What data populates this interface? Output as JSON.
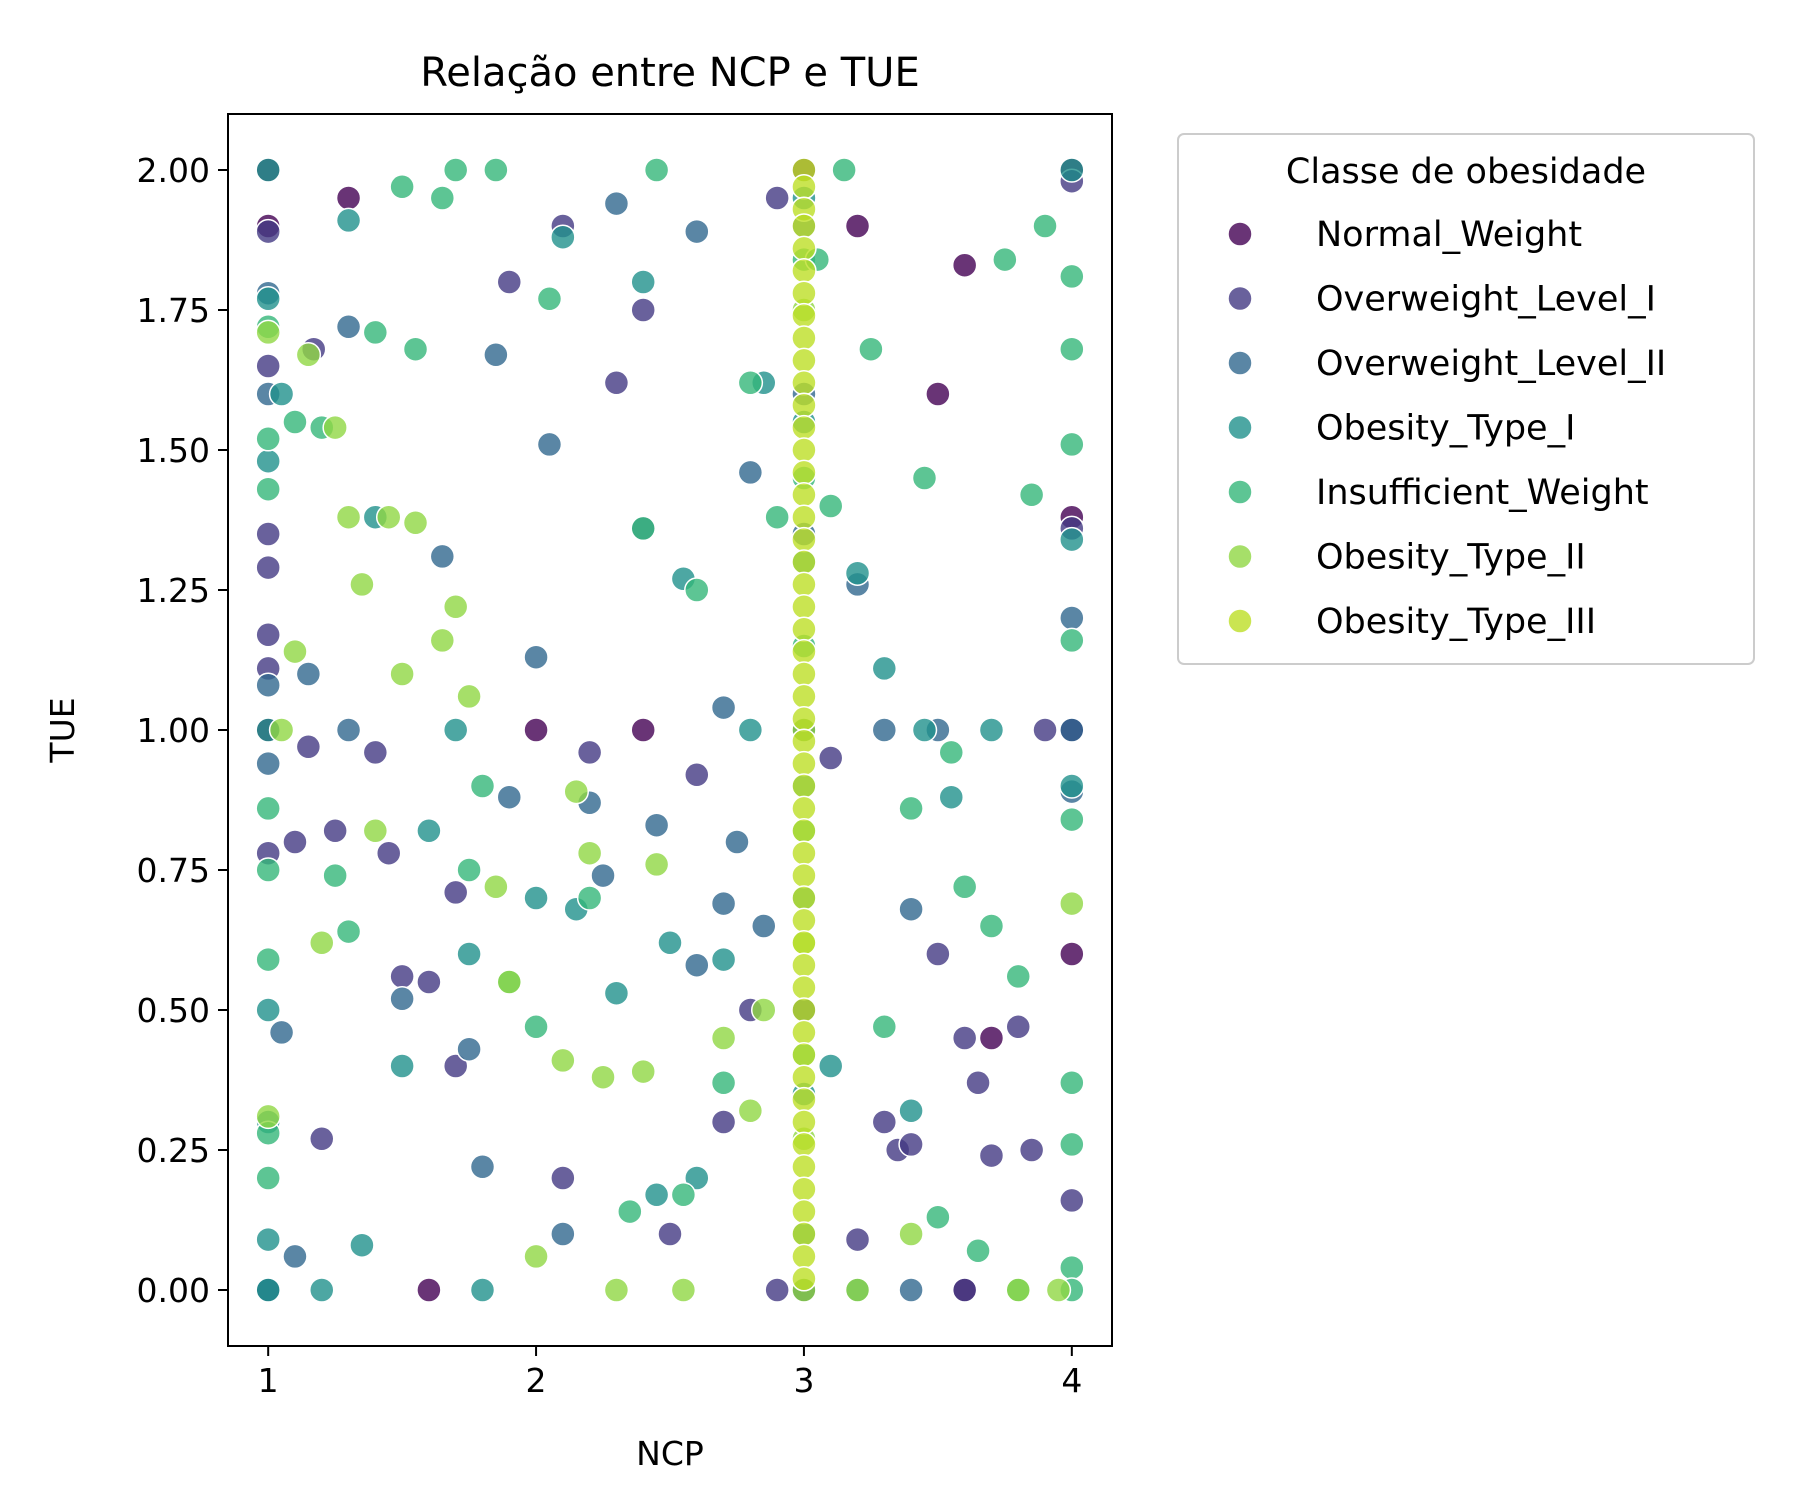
{
  "chart_data": {
    "type": "scatter",
    "title": "Relação entre NCP e TUE",
    "xlabel": "NCP",
    "ylabel": "TUE",
    "xlim": [
      0.85,
      4.15
    ],
    "ylim": [
      -0.1,
      2.1
    ],
    "xticks": [
      1,
      2,
      3,
      4
    ],
    "xtick_labels": [
      "1",
      "2",
      "3",
      "4"
    ],
    "yticks": [
      0.0,
      0.25,
      0.5,
      0.75,
      1.0,
      1.25,
      1.5,
      1.75,
      2.0
    ],
    "ytick_labels": [
      "0.00",
      "0.25",
      "0.50",
      "0.75",
      "1.00",
      "1.25",
      "1.50",
      "1.75",
      "2.00"
    ],
    "grid": false,
    "legend": {
      "title": "Classe de obesidade",
      "placement": "outside-right-top"
    },
    "marker_alpha": 0.8,
    "series": [
      {
        "name": "Normal_Weight",
        "color": "#440154",
        "points": [
          [
            1,
            2.0
          ],
          [
            1,
            1.9
          ],
          [
            1,
            1.0
          ],
          [
            1,
            0.0
          ],
          [
            1.3,
            1.95
          ],
          [
            1.6,
            0.0
          ],
          [
            2.0,
            1.0
          ],
          [
            2.4,
            1.0
          ],
          [
            3,
            2.0
          ],
          [
            3,
            1.0
          ],
          [
            3,
            0.5
          ],
          [
            3,
            0.0
          ],
          [
            3.2,
            1.9
          ],
          [
            3.5,
            1.6
          ],
          [
            3.6,
            1.83
          ],
          [
            4,
            2.0
          ],
          [
            4,
            1.38
          ],
          [
            4,
            1.0
          ],
          [
            4,
            0.6
          ],
          [
            3.7,
            0.45
          ],
          [
            3.6,
            0.0
          ]
        ]
      },
      {
        "name": "Overweight_Level_I",
        "color": "#443983",
        "points": [
          [
            1,
            1.89
          ],
          [
            1,
            1.65
          ],
          [
            1,
            1.35
          ],
          [
            1,
            1.29
          ],
          [
            1,
            1.17
          ],
          [
            1,
            1.11
          ],
          [
            1,
            0.78
          ],
          [
            1,
            0.0
          ],
          [
            1.1,
            0.8
          ],
          [
            1.15,
            0.97
          ],
          [
            1.17,
            1.68
          ],
          [
            1.2,
            0.27
          ],
          [
            1.25,
            0.82
          ],
          [
            1.4,
            0.96
          ],
          [
            1.45,
            0.78
          ],
          [
            1.5,
            0.56
          ],
          [
            1.6,
            0.55
          ],
          [
            1.7,
            0.71
          ],
          [
            1.7,
            0.4
          ],
          [
            1.9,
            1.8
          ],
          [
            2.1,
            1.9
          ],
          [
            2.1,
            0.2
          ],
          [
            2.2,
            0.96
          ],
          [
            2.3,
            1.62
          ],
          [
            2.4,
            1.75
          ],
          [
            2.5,
            0.1
          ],
          [
            2.6,
            0.92
          ],
          [
            2.7,
            0.3
          ],
          [
            2.8,
            0.5
          ],
          [
            2.9,
            1.95
          ],
          [
            2.9,
            0.0
          ],
          [
            3.1,
            0.95
          ],
          [
            3.2,
            0.09
          ],
          [
            3.3,
            0.3
          ],
          [
            3.35,
            0.25
          ],
          [
            3.4,
            0.26
          ],
          [
            3.5,
            0.6
          ],
          [
            3.6,
            0.45
          ],
          [
            3.65,
            0.37
          ],
          [
            3.7,
            0.24
          ],
          [
            3.8,
            0.47
          ],
          [
            3.85,
            0.25
          ],
          [
            4,
            1.98
          ],
          [
            4,
            1.36
          ],
          [
            4,
            0.16
          ],
          [
            4,
            1.0
          ],
          [
            3.9,
            1.0
          ],
          [
            3.6,
            0.0
          ]
        ]
      },
      {
        "name": "Overweight_Level_II",
        "color": "#31688e",
        "points": [
          [
            1,
            1.78
          ],
          [
            1,
            1.6
          ],
          [
            1,
            1.08
          ],
          [
            1,
            0.94
          ],
          [
            1,
            0.0
          ],
          [
            1.05,
            0.46
          ],
          [
            1.1,
            0.06
          ],
          [
            1.15,
            1.1
          ],
          [
            1.3,
            1.72
          ],
          [
            1.3,
            1.0
          ],
          [
            1.5,
            0.52
          ],
          [
            1.65,
            1.31
          ],
          [
            1.75,
            0.43
          ],
          [
            1.8,
            0.22
          ],
          [
            1.85,
            1.67
          ],
          [
            1.9,
            0.88
          ],
          [
            2.0,
            1.13
          ],
          [
            2.05,
            1.51
          ],
          [
            2.1,
            0.1
          ],
          [
            2.2,
            0.87
          ],
          [
            2.25,
            0.74
          ],
          [
            2.3,
            1.94
          ],
          [
            2.4,
            1.36
          ],
          [
            2.45,
            0.83
          ],
          [
            2.6,
            0.58
          ],
          [
            2.6,
            1.89
          ],
          [
            2.7,
            1.04
          ],
          [
            2.7,
            0.69
          ],
          [
            2.75,
            0.8
          ],
          [
            2.8,
            1.46
          ],
          [
            2.85,
            0.65
          ],
          [
            3,
            1.9
          ],
          [
            3,
            1.6
          ],
          [
            3,
            1.35
          ],
          [
            3,
            1.0
          ],
          [
            3,
            0.5
          ],
          [
            3,
            0.0
          ],
          [
            3.2,
            1.26
          ],
          [
            3.3,
            1.0
          ],
          [
            3.4,
            0.68
          ],
          [
            3.5,
            1.0
          ],
          [
            4,
            1.2
          ],
          [
            4,
            0.89
          ],
          [
            4,
            1.0
          ],
          [
            3.4,
            0.0
          ]
        ]
      },
      {
        "name": "Obesity_Type_I",
        "color": "#21918c",
        "points": [
          [
            1,
            2.0
          ],
          [
            1,
            1.77
          ],
          [
            1,
            1.48
          ],
          [
            1,
            1.0
          ],
          [
            1,
            0.5
          ],
          [
            1,
            0.3
          ],
          [
            1,
            0.09
          ],
          [
            1,
            0.0
          ],
          [
            1.05,
            1.6
          ],
          [
            1.2,
            0.0
          ],
          [
            1.3,
            1.91
          ],
          [
            1.35,
            0.08
          ],
          [
            1.4,
            1.38
          ],
          [
            1.5,
            0.4
          ],
          [
            1.6,
            0.82
          ],
          [
            1.7,
            1.0
          ],
          [
            1.75,
            0.6
          ],
          [
            1.8,
            0.0
          ],
          [
            2.0,
            0.7
          ],
          [
            2.1,
            1.88
          ],
          [
            2.15,
            0.68
          ],
          [
            2.3,
            0.53
          ],
          [
            2.4,
            1.8
          ],
          [
            2.45,
            0.17
          ],
          [
            2.5,
            0.62
          ],
          [
            2.55,
            1.27
          ],
          [
            2.6,
            0.2
          ],
          [
            2.7,
            0.59
          ],
          [
            2.8,
            1.0
          ],
          [
            2.85,
            1.62
          ],
          [
            3,
            1.95
          ],
          [
            3,
            1.55
          ],
          [
            3,
            1.3
          ],
          [
            3,
            0.9
          ],
          [
            3,
            0.7
          ],
          [
            3,
            0.35
          ],
          [
            3,
            0.1
          ],
          [
            3.1,
            0.4
          ],
          [
            3.2,
            1.28
          ],
          [
            3.3,
            1.11
          ],
          [
            3.4,
            0.32
          ],
          [
            3.45,
            1.0
          ],
          [
            3.55,
            0.88
          ],
          [
            4,
            2.0
          ],
          [
            4,
            1.34
          ],
          [
            4,
            0.9
          ],
          [
            3.7,
            1.0
          ],
          [
            3.2,
            0.0
          ]
        ]
      },
      {
        "name": "Insufficient_Weight",
        "color": "#35b779",
        "points": [
          [
            1,
            1.72
          ],
          [
            1,
            1.52
          ],
          [
            1,
            1.43
          ],
          [
            1,
            0.86
          ],
          [
            1,
            0.75
          ],
          [
            1,
            0.59
          ],
          [
            1,
            0.28
          ],
          [
            1,
            0.2
          ],
          [
            1.1,
            1.55
          ],
          [
            1.2,
            1.54
          ],
          [
            1.25,
            0.74
          ],
          [
            1.3,
            0.64
          ],
          [
            1.4,
            1.71
          ],
          [
            1.5,
            1.97
          ],
          [
            1.55,
            1.68
          ],
          [
            1.65,
            1.95
          ],
          [
            1.7,
            2.0
          ],
          [
            1.75,
            0.75
          ],
          [
            1.8,
            0.9
          ],
          [
            1.85,
            2.0
          ],
          [
            1.9,
            0.55
          ],
          [
            2.0,
            0.47
          ],
          [
            2.05,
            1.77
          ],
          [
            2.2,
            0.7
          ],
          [
            2.35,
            0.14
          ],
          [
            2.4,
            1.36
          ],
          [
            2.45,
            2.0
          ],
          [
            2.55,
            0.17
          ],
          [
            2.6,
            1.25
          ],
          [
            2.7,
            0.37
          ],
          [
            2.8,
            1.62
          ],
          [
            2.9,
            1.38
          ],
          [
            3,
            1.84
          ],
          [
            3,
            1.45
          ],
          [
            3,
            1.15
          ],
          [
            3,
            0.82
          ],
          [
            3,
            0.42
          ],
          [
            3.05,
            1.84
          ],
          [
            3.1,
            1.4
          ],
          [
            3.15,
            2.0
          ],
          [
            3.25,
            1.68
          ],
          [
            3.3,
            0.47
          ],
          [
            3.4,
            0.86
          ],
          [
            3.45,
            1.45
          ],
          [
            3.5,
            0.13
          ],
          [
            3.55,
            0.96
          ],
          [
            3.6,
            0.72
          ],
          [
            3.65,
            0.07
          ],
          [
            3.7,
            0.65
          ],
          [
            3.75,
            1.84
          ],
          [
            3.8,
            0.56
          ],
          [
            3.85,
            1.42
          ],
          [
            3.9,
            1.9
          ],
          [
            4,
            1.81
          ],
          [
            4,
            1.68
          ],
          [
            4,
            1.51
          ],
          [
            4,
            1.16
          ],
          [
            4,
            0.84
          ],
          [
            4,
            0.37
          ],
          [
            4,
            0.26
          ],
          [
            4,
            0.04
          ],
          [
            4,
            0.0
          ],
          [
            3.8,
            0.0
          ]
        ]
      },
      {
        "name": "Obesity_Type_II",
        "color": "#90d743",
        "points": [
          [
            1,
            1.71
          ],
          [
            1,
            0.31
          ],
          [
            1.05,
            1.0
          ],
          [
            1.1,
            1.14
          ],
          [
            1.15,
            1.67
          ],
          [
            1.2,
            0.62
          ],
          [
            1.25,
            1.54
          ],
          [
            1.3,
            1.38
          ],
          [
            1.35,
            1.26
          ],
          [
            1.4,
            0.82
          ],
          [
            1.45,
            1.38
          ],
          [
            1.5,
            1.1
          ],
          [
            1.55,
            1.37
          ],
          [
            1.65,
            1.16
          ],
          [
            1.7,
            1.22
          ],
          [
            1.75,
            1.06
          ],
          [
            1.85,
            0.72
          ],
          [
            1.9,
            0.55
          ],
          [
            2.0,
            0.06
          ],
          [
            2.1,
            0.41
          ],
          [
            2.15,
            0.89
          ],
          [
            2.2,
            0.78
          ],
          [
            2.25,
            0.38
          ],
          [
            2.3,
            0.0
          ],
          [
            2.4,
            0.39
          ],
          [
            2.45,
            0.76
          ],
          [
            2.55,
            0.0
          ],
          [
            2.7,
            0.45
          ],
          [
            2.8,
            0.32
          ],
          [
            2.85,
            0.5
          ],
          [
            3,
            1.75
          ],
          [
            3,
            1.0
          ],
          [
            3,
            0.62
          ],
          [
            3,
            0.27
          ],
          [
            3,
            0.0
          ],
          [
            3.2,
            0.0
          ],
          [
            3.4,
            0.1
          ],
          [
            3.8,
            0.0
          ],
          [
            3.95,
            0.0
          ],
          [
            4,
            0.69
          ]
        ]
      },
      {
        "name": "Obesity_Type_III",
        "color": "#bddf26",
        "points": [
          [
            3,
            2.0
          ],
          [
            3,
            1.97
          ],
          [
            3,
            1.93
          ],
          [
            3,
            1.9
          ],
          [
            3,
            1.86
          ],
          [
            3,
            1.82
          ],
          [
            3,
            1.78
          ],
          [
            3,
            1.74
          ],
          [
            3,
            1.7
          ],
          [
            3,
            1.66
          ],
          [
            3,
            1.62
          ],
          [
            3,
            1.58
          ],
          [
            3,
            1.54
          ],
          [
            3,
            1.5
          ],
          [
            3,
            1.46
          ],
          [
            3,
            1.42
          ],
          [
            3,
            1.38
          ],
          [
            3,
            1.34
          ],
          [
            3,
            1.3
          ],
          [
            3,
            1.26
          ],
          [
            3,
            1.22
          ],
          [
            3,
            1.18
          ],
          [
            3,
            1.14
          ],
          [
            3,
            1.1
          ],
          [
            3,
            1.06
          ],
          [
            3,
            1.02
          ],
          [
            3,
            0.98
          ],
          [
            3,
            0.94
          ],
          [
            3,
            0.9
          ],
          [
            3,
            0.86
          ],
          [
            3,
            0.82
          ],
          [
            3,
            0.78
          ],
          [
            3,
            0.74
          ],
          [
            3,
            0.7
          ],
          [
            3,
            0.66
          ],
          [
            3,
            0.62
          ],
          [
            3,
            0.58
          ],
          [
            3,
            0.54
          ],
          [
            3,
            0.5
          ],
          [
            3,
            0.46
          ],
          [
            3,
            0.42
          ],
          [
            3,
            0.38
          ],
          [
            3,
            0.34
          ],
          [
            3,
            0.3
          ],
          [
            3,
            0.26
          ],
          [
            3,
            0.22
          ],
          [
            3,
            0.18
          ],
          [
            3,
            0.14
          ],
          [
            3,
            0.1
          ],
          [
            3,
            0.06
          ],
          [
            3,
            0.02
          ]
        ]
      }
    ]
  }
}
